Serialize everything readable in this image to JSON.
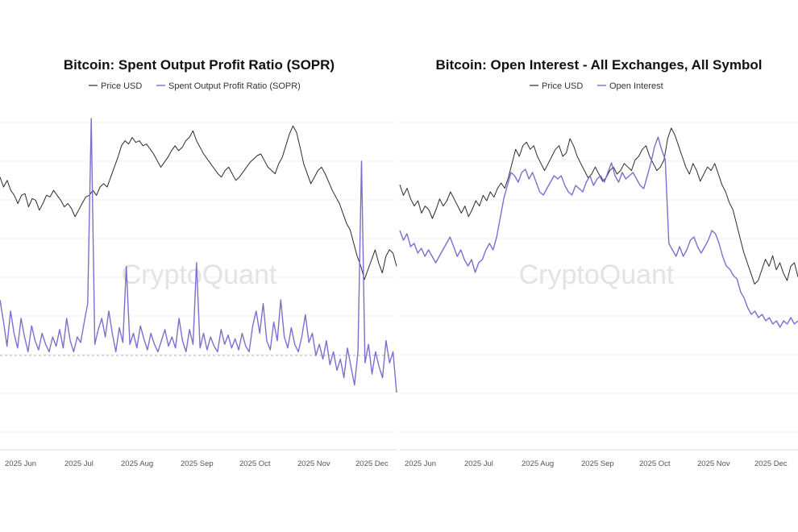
{
  "chart_data": [
    {
      "type": "line",
      "title": "Bitcoin: Spent Output Profit Ratio (SOPR)",
      "watermark": "CryptoQuant",
      "x_ticks": [
        "2025 Jun",
        "2025 Jul",
        "2025 Aug",
        "2025 Sep",
        "2025 Oct",
        "2025 Nov",
        "2025 Dec"
      ],
      "baseline_dashed": true,
      "grid": "horizontal",
      "legend_position": "top-center",
      "series": [
        {
          "name": "Price USD",
          "color": "#2b2b2b",
          "values": [
            0.66,
            0.6,
            0.64,
            0.58,
            0.55,
            0.5,
            0.55,
            0.56,
            0.48,
            0.53,
            0.52,
            0.46,
            0.5,
            0.55,
            0.54,
            0.58,
            0.55,
            0.52,
            0.48,
            0.5,
            0.47,
            0.42,
            0.46,
            0.5,
            0.54,
            0.55,
            0.58,
            0.55,
            0.6,
            0.62,
            0.6,
            0.66,
            0.72,
            0.78,
            0.85,
            0.88,
            0.86,
            0.9,
            0.87,
            0.88,
            0.85,
            0.86,
            0.83,
            0.8,
            0.76,
            0.72,
            0.75,
            0.78,
            0.82,
            0.85,
            0.82,
            0.84,
            0.88,
            0.9,
            0.94,
            0.88,
            0.84,
            0.8,
            0.77,
            0.74,
            0.71,
            0.68,
            0.66,
            0.7,
            0.72,
            0.68,
            0.64,
            0.66,
            0.69,
            0.72,
            0.75,
            0.77,
            0.79,
            0.8,
            0.76,
            0.72,
            0.7,
            0.68,
            0.74,
            0.78,
            0.85,
            0.92,
            0.97,
            0.93,
            0.84,
            0.74,
            0.68,
            0.62,
            0.66,
            0.7,
            0.72,
            0.68,
            0.63,
            0.58,
            0.54,
            0.5,
            0.44,
            0.38,
            0.34,
            0.26,
            0.18,
            0.12,
            0.04,
            0.1,
            0.16,
            0.22,
            0.14,
            0.08,
            0.18,
            0.22,
            0.2,
            0.12
          ]
        },
        {
          "name": "Spent Output Profit Ratio (SOPR)",
          "color": "#7b6fd0",
          "values": [
            0.3,
            0.18,
            0.05,
            0.24,
            0.12,
            0.04,
            0.2,
            0.1,
            0.02,
            0.16,
            0.08,
            0.03,
            0.12,
            0.06,
            0.02,
            0.1,
            0.05,
            0.14,
            0.04,
            0.2,
            0.08,
            0.02,
            0.1,
            0.07,
            0.18,
            0.28,
            1.0,
            0.06,
            0.14,
            0.2,
            0.1,
            0.24,
            0.12,
            0.02,
            0.15,
            0.07,
            0.48,
            0.06,
            0.12,
            0.04,
            0.16,
            0.09,
            0.03,
            0.12,
            0.06,
            0.02,
            0.08,
            0.14,
            0.05,
            0.1,
            0.04,
            0.2,
            0.08,
            0.02,
            0.14,
            0.06,
            0.5,
            0.04,
            0.12,
            0.03,
            0.1,
            0.05,
            0.02,
            0.14,
            0.06,
            0.11,
            0.04,
            0.09,
            0.03,
            0.12,
            0.05,
            0.02,
            0.16,
            0.24,
            0.12,
            0.28,
            0.08,
            0.03,
            0.18,
            0.08,
            0.3,
            0.1,
            0.04,
            0.15,
            0.06,
            0.02,
            0.1,
            0.22,
            0.07,
            0.12,
            0.0,
            0.06,
            -0.02,
            0.08,
            -0.05,
            0.02,
            -0.08,
            -0.02,
            -0.12,
            0.04,
            -0.06,
            -0.16,
            0.02,
            0.82,
            -0.04,
            0.06,
            -0.1,
            0.02,
            -0.06,
            -0.12,
            0.08,
            -0.04,
            0.02,
            -0.2
          ]
        }
      ]
    },
    {
      "type": "line",
      "title": "Bitcoin: Open Interest - All Exchanges, All Symbol",
      "watermark": "CryptoQuant",
      "x_ticks": [
        "2025 Jun",
        "2025 Jul",
        "2025 Aug",
        "2025 Sep",
        "2025 Oct",
        "2025 Nov",
        "2025 Dec"
      ],
      "grid": "horizontal",
      "legend_position": "top-center",
      "series": [
        {
          "name": "Price USD",
          "color": "#2b2b2b",
          "values": [
            0.64,
            0.58,
            0.62,
            0.56,
            0.52,
            0.55,
            0.48,
            0.52,
            0.5,
            0.45,
            0.5,
            0.56,
            0.52,
            0.55,
            0.6,
            0.56,
            0.52,
            0.48,
            0.52,
            0.46,
            0.5,
            0.55,
            0.52,
            0.58,
            0.55,
            0.6,
            0.57,
            0.62,
            0.65,
            0.62,
            0.68,
            0.76,
            0.84,
            0.8,
            0.86,
            0.88,
            0.84,
            0.86,
            0.8,
            0.76,
            0.72,
            0.76,
            0.8,
            0.84,
            0.86,
            0.8,
            0.82,
            0.9,
            0.86,
            0.8,
            0.76,
            0.72,
            0.68,
            0.7,
            0.74,
            0.7,
            0.66,
            0.68,
            0.72,
            0.74,
            0.7,
            0.72,
            0.76,
            0.74,
            0.72,
            0.78,
            0.8,
            0.84,
            0.86,
            0.8,
            0.76,
            0.72,
            0.74,
            0.78,
            0.9,
            0.96,
            0.92,
            0.86,
            0.8,
            0.74,
            0.7,
            0.76,
            0.72,
            0.66,
            0.7,
            0.74,
            0.72,
            0.76,
            0.7,
            0.64,
            0.6,
            0.54,
            0.5,
            0.42,
            0.34,
            0.26,
            0.2,
            0.14,
            0.08,
            0.1,
            0.16,
            0.22,
            0.18,
            0.24,
            0.16,
            0.2,
            0.14,
            0.1,
            0.18,
            0.2,
            0.12
          ]
        },
        {
          "name": "Open Interest",
          "color": "#7b6fd0",
          "values": [
            0.38,
            0.32,
            0.36,
            0.28,
            0.3,
            0.24,
            0.27,
            0.22,
            0.26,
            0.22,
            0.18,
            0.22,
            0.26,
            0.3,
            0.34,
            0.28,
            0.22,
            0.26,
            0.2,
            0.16,
            0.2,
            0.12,
            0.18,
            0.2,
            0.26,
            0.3,
            0.26,
            0.34,
            0.46,
            0.58,
            0.66,
            0.74,
            0.72,
            0.68,
            0.74,
            0.76,
            0.7,
            0.74,
            0.68,
            0.62,
            0.6,
            0.64,
            0.68,
            0.72,
            0.7,
            0.72,
            0.66,
            0.62,
            0.6,
            0.66,
            0.64,
            0.62,
            0.68,
            0.72,
            0.66,
            0.7,
            0.72,
            0.68,
            0.74,
            0.8,
            0.72,
            0.68,
            0.74,
            0.7,
            0.72,
            0.74,
            0.7,
            0.66,
            0.64,
            0.72,
            0.8,
            0.9,
            0.96,
            0.88,
            0.82,
            0.3,
            0.26,
            0.22,
            0.28,
            0.22,
            0.26,
            0.32,
            0.34,
            0.28,
            0.24,
            0.28,
            0.32,
            0.38,
            0.36,
            0.3,
            0.22,
            0.16,
            0.14,
            0.1,
            0.08,
            0.0,
            -0.04,
            -0.1,
            -0.14,
            -0.12,
            -0.16,
            -0.14,
            -0.18,
            -0.16,
            -0.2,
            -0.18,
            -0.22,
            -0.18,
            -0.2,
            -0.16,
            -0.2,
            -0.18
          ]
        }
      ]
    }
  ]
}
